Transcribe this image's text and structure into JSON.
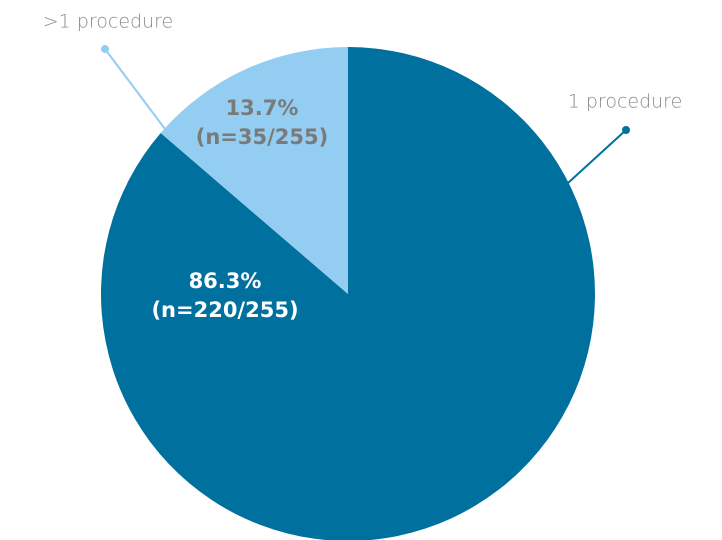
{
  "chart_data": {
    "type": "pie",
    "categories": [
      "1 procedure",
      ">1 procedure"
    ],
    "values": [
      86.3,
      13.7
    ],
    "value_labels": [
      "86.3%",
      "13.7%"
    ],
    "count_labels": [
      "(n=220/255)",
      "(n=35/255)"
    ],
    "colors": [
      "#00709e",
      "#93cdf1"
    ],
    "label_colors": [
      "#ffffff",
      "#7a7a7a"
    ],
    "start_angle": 0,
    "direction": "clockwise"
  }
}
